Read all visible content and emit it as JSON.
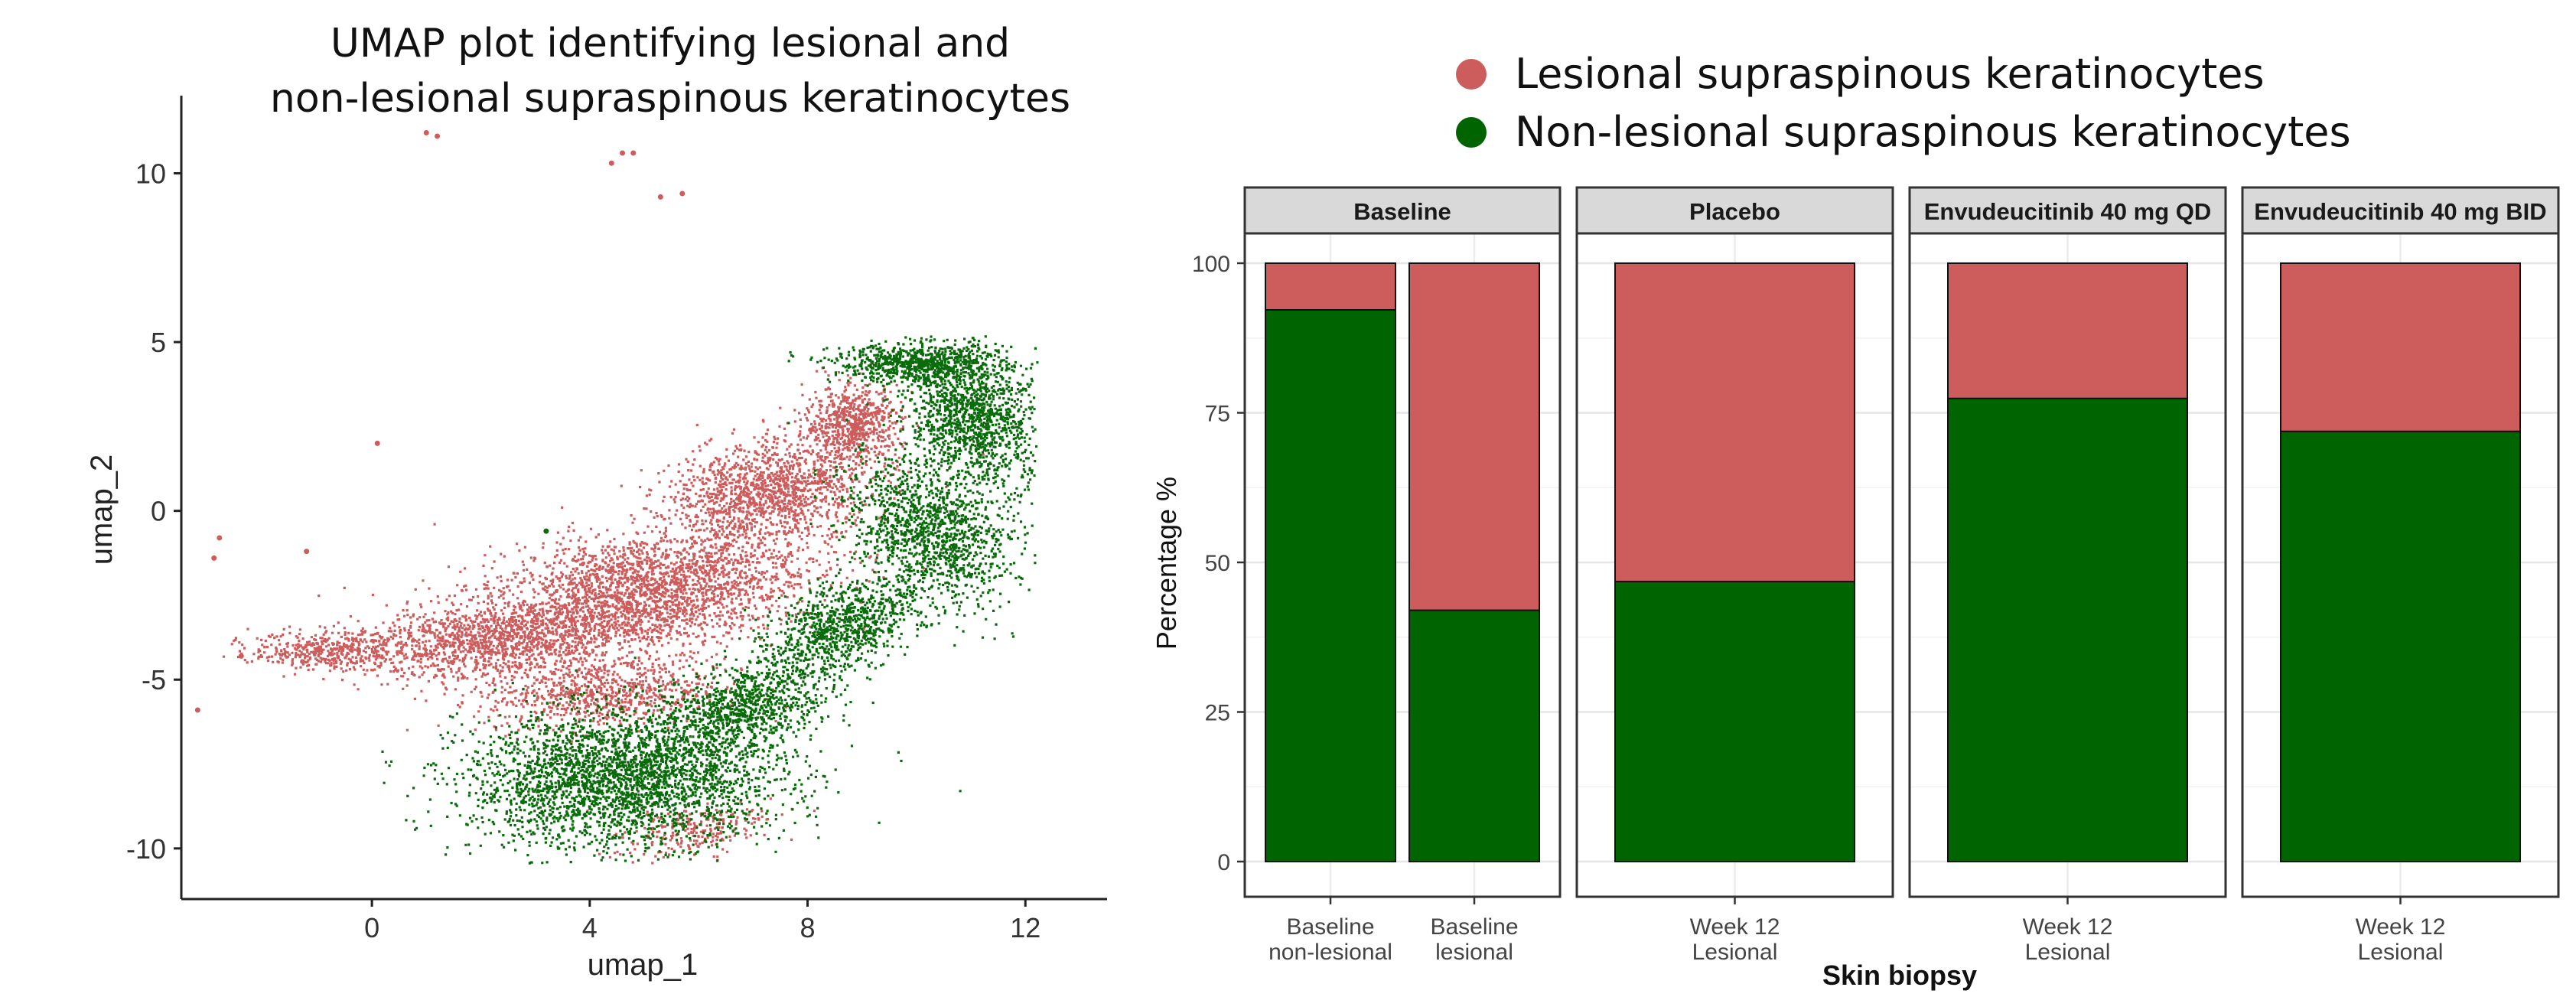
{
  "chart_data": [
    {
      "type": "scatter",
      "title_lines": [
        "UMAP plot identifying lesional and",
        "non-lesional supraspinous keratinocytes"
      ],
      "xlabel": "umap_1",
      "ylabel": "umap_2",
      "xlim": [
        -3.5,
        13.5
      ],
      "ylim": [
        -11.5,
        12.3
      ],
      "xticks": [
        0,
        4,
        8,
        12
      ],
      "yticks": [
        10,
        5,
        0,
        -5,
        -10
      ],
      "grid": false,
      "legend": "none",
      "series": [
        {
          "color": "#cd5c5c",
          "points": [
            [
              1.0,
              11.2
            ],
            [
              1.2,
              11.1
            ],
            [
              4.4,
              10.3
            ],
            [
              4.6,
              10.6
            ],
            [
              4.8,
              10.6
            ],
            [
              5.7,
              9.4
            ],
            [
              5.3,
              9.3
            ],
            [
              0.1,
              2.0
            ],
            [
              -2.8,
              -0.8
            ],
            [
              -2.9,
              -1.4
            ],
            [
              -3.2,
              -5.9
            ],
            [
              -2.4,
              -4.3
            ],
            [
              -1.2,
              -1.2
            ]
          ],
          "clusters": [
            {
              "cx": 5.0,
              "cy": -2.4,
              "rx": 2.8,
              "ry": 1.6,
              "rot": 18,
              "n": 2600
            },
            {
              "cx": 7.3,
              "cy": 0.6,
              "rx": 1.7,
              "ry": 1.3,
              "rot": 25,
              "n": 1400
            },
            {
              "cx": 8.8,
              "cy": 2.6,
              "rx": 0.8,
              "ry": 1.0,
              "rot": 0,
              "n": 700
            },
            {
              "cx": 2.2,
              "cy": -3.8,
              "rx": 2.3,
              "ry": 1.0,
              "rot": 8,
              "n": 1300
            },
            {
              "cx": -0.8,
              "cy": -4.1,
              "rx": 1.3,
              "ry": 0.5,
              "rot": 0,
              "n": 450
            },
            {
              "cx": 4.2,
              "cy": -5.4,
              "rx": 2.0,
              "ry": 0.9,
              "rot": 5,
              "n": 800
            },
            {
              "cx": 5.8,
              "cy": -9.5,
              "rx": 1.3,
              "ry": 0.7,
              "rot": 25,
              "n": 260
            }
          ]
        },
        {
          "color": "#0a6b0a",
          "points": [
            [
              3.2,
              -0.6
            ]
          ],
          "clusters": [
            {
              "cx": 4.6,
              "cy": -7.9,
              "rx": 2.6,
              "ry": 1.8,
              "rot": 5,
              "n": 3000
            },
            {
              "cx": 6.8,
              "cy": -5.8,
              "rx": 1.6,
              "ry": 1.0,
              "rot": 35,
              "n": 900
            },
            {
              "cx": 8.6,
              "cy": -3.4,
              "rx": 1.5,
              "ry": 1.0,
              "rot": 45,
              "n": 900
            },
            {
              "cx": 10.2,
              "cy": -0.6,
              "rx": 1.2,
              "ry": 2.0,
              "rot": 20,
              "n": 1300
            },
            {
              "cx": 11.0,
              "cy": 2.8,
              "rx": 1.1,
              "ry": 1.9,
              "rot": 10,
              "n": 1400
            },
            {
              "cx": 10.0,
              "cy": 4.4,
              "rx": 1.4,
              "ry": 0.5,
              "rot": 0,
              "n": 700
            }
          ]
        }
      ]
    },
    {
      "type": "bar",
      "stacked": true,
      "ylabel": "Percentage %",
      "xlabel": "Skin biopsy",
      "ylim": [
        0,
        105
      ],
      "yticks": [
        0,
        25,
        50,
        75,
        100
      ],
      "grid": true,
      "legend_placement": "top",
      "series": [
        {
          "name": "Lesional supraspinous keratinocytes",
          "color": "#cd5c5c"
        },
        {
          "name": "Non-lesional supraspinous keratinocytes",
          "color": "#006400"
        }
      ],
      "panels": [
        {
          "label": "Baseline",
          "bars": [
            {
              "category": [
                "Baseline",
                "non-lesional"
              ],
              "lesional": 7.8,
              "non_lesional": 92.2
            },
            {
              "category": [
                "Baseline",
                "lesional"
              ],
              "lesional": 58.0,
              "non_lesional": 42.0
            }
          ]
        },
        {
          "label": "Placebo",
          "bars": [
            {
              "category": [
                "Week 12",
                "Lesional"
              ],
              "lesional": 53.2,
              "non_lesional": 46.8
            }
          ]
        },
        {
          "label": "Envudeucitinib 40 mg QD",
          "bars": [
            {
              "category": [
                "Week 12",
                "Lesional"
              ],
              "lesional": 22.6,
              "non_lesional": 77.4
            }
          ]
        },
        {
          "label": "Envudeucitinib 40 mg BID",
          "bars": [
            {
              "category": [
                "Week 12",
                "Lesional"
              ],
              "lesional": 28.1,
              "non_lesional": 71.9
            }
          ]
        }
      ]
    }
  ]
}
